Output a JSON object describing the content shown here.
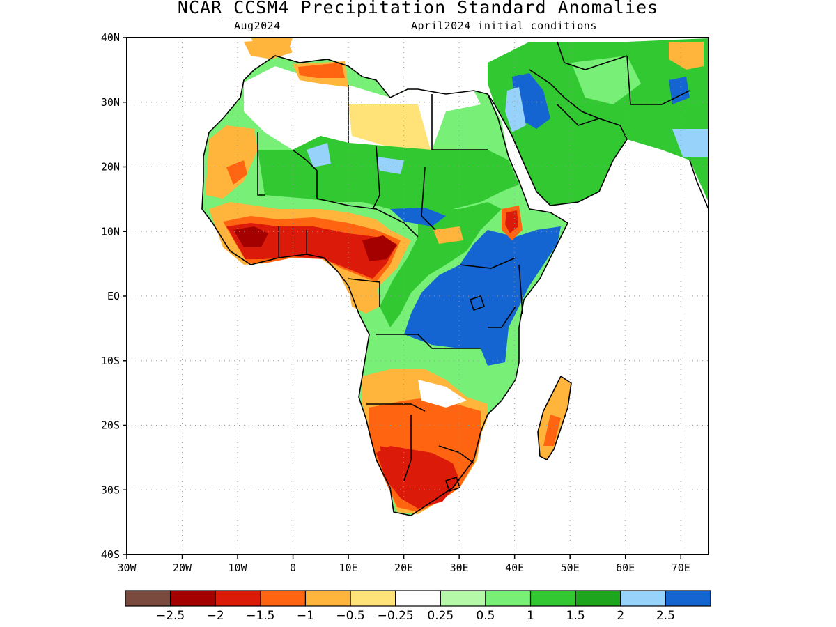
{
  "title": "NCAR_CCSM4 Precipitation Standard Anomalies",
  "subtitle_left": "Aug2024",
  "subtitle_right": "April2024 initial conditions",
  "map": {
    "lon_range": [
      -30,
      75
    ],
    "lat_range": [
      -40,
      40
    ],
    "lat_ticks": [
      {
        "v": 40,
        "label": "40N"
      },
      {
        "v": 30,
        "label": "30N"
      },
      {
        "v": 20,
        "label": "20N"
      },
      {
        "v": 10,
        "label": "10N"
      },
      {
        "v": 0,
        "label": "EQ"
      },
      {
        "v": -10,
        "label": "10S"
      },
      {
        "v": -20,
        "label": "20S"
      },
      {
        "v": -30,
        "label": "30S"
      },
      {
        "v": -40,
        "label": "40S"
      }
    ],
    "lon_ticks": [
      {
        "v": -30,
        "label": "30W"
      },
      {
        "v": -20,
        "label": "20W"
      },
      {
        "v": -10,
        "label": "10W"
      },
      {
        "v": 0,
        "label": "0"
      },
      {
        "v": 10,
        "label": "10E"
      },
      {
        "v": 20,
        "label": "20E"
      },
      {
        "v": 30,
        "label": "30E"
      },
      {
        "v": 40,
        "label": "40E"
      },
      {
        "v": 50,
        "label": "50E"
      },
      {
        "v": 60,
        "label": "60E"
      },
      {
        "v": 70,
        "label": "70E"
      }
    ],
    "grid": true
  },
  "colorbar": {
    "colors": [
      "#7a4a3e",
      "#a50000",
      "#dc1a0a",
      "#ff6410",
      "#ffb43c",
      "#ffe278",
      "#ffffff",
      "#b4f8a8",
      "#78f078",
      "#32c832",
      "#1ea51e",
      "#96d2fa",
      "#1464d2"
    ],
    "labels": [
      "−2.5",
      "−2",
      "−1.5",
      "−1",
      "−0.5",
      "−0.25",
      "0.25",
      "0.5",
      "1",
      "1.5",
      "2",
      "2.5"
    ]
  },
  "colors": {
    "dry_strong": "#a50000",
    "dry": "#dc1a0a",
    "dry_mod": "#ff6410",
    "dry_weak": "#ffb43c",
    "dry_slight": "#ffe278",
    "wet_slight": "#b4f8a8",
    "wet_weak": "#78f078",
    "wet": "#32c832",
    "wet_mod": "#1ea51e",
    "wet_strong": "#96d2fa",
    "wet_extreme": "#1464d2"
  }
}
